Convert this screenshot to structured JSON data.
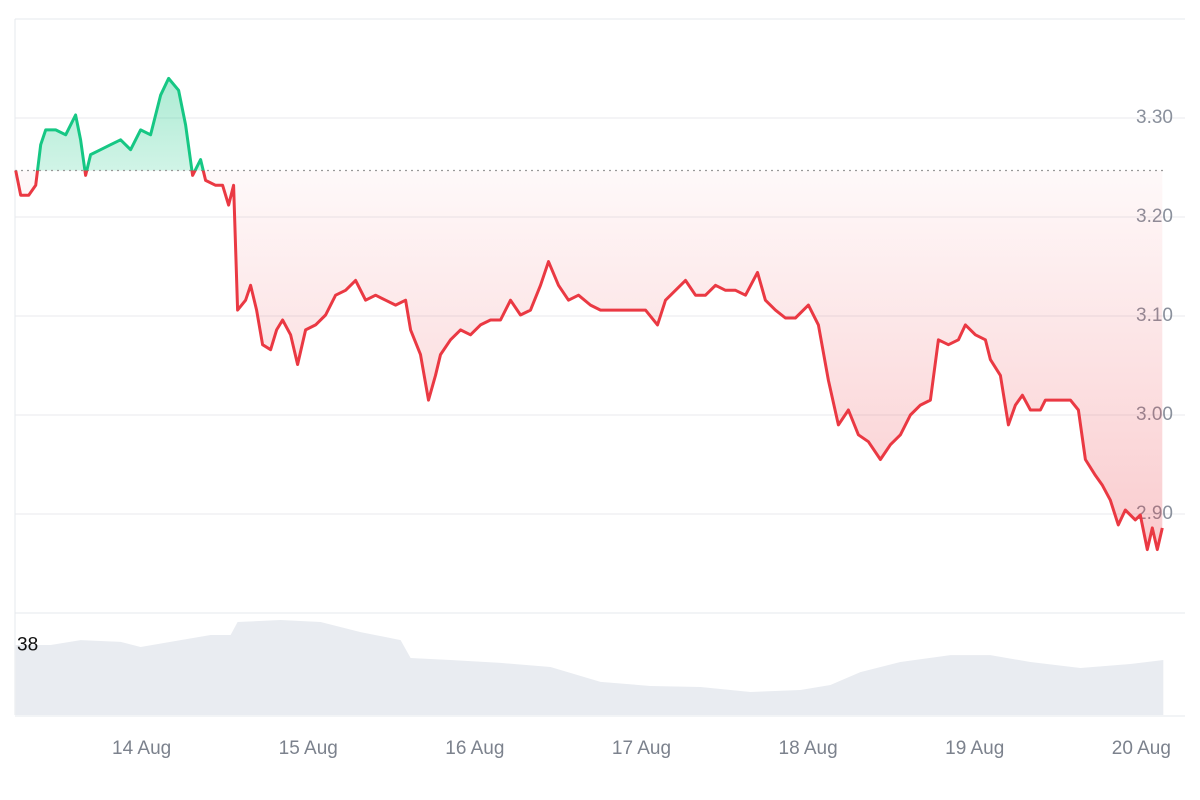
{
  "chart_data": {
    "type": "line",
    "x": [
      13.244,
      13.274,
      13.322,
      13.364,
      13.394,
      13.424,
      13.484,
      13.544,
      13.604,
      13.634,
      13.664,
      13.694,
      13.754,
      13.814,
      13.874,
      13.934,
      13.994,
      14.054,
      14.114,
      14.162,
      14.222,
      14.264,
      14.306,
      14.354,
      14.384,
      14.444,
      14.486,
      14.522,
      14.552,
      14.576,
      14.624,
      14.654,
      14.69,
      14.726,
      14.774,
      14.81,
      14.846,
      14.894,
      14.936,
      14.984,
      15.044,
      15.104,
      15.164,
      15.224,
      15.284,
      15.344,
      15.404,
      15.464,
      15.524,
      15.584,
      15.614,
      15.674,
      15.722,
      15.764,
      15.794,
      15.854,
      15.914,
      15.974,
      16.034,
      16.094,
      16.154,
      16.214,
      16.274,
      16.334,
      16.394,
      16.442,
      16.502,
      16.562,
      16.622,
      16.694,
      16.754,
      16.844,
      16.934,
      17.024,
      17.096,
      17.144,
      17.204,
      17.264,
      17.324,
      17.384,
      17.444,
      17.504,
      17.564,
      17.624,
      17.696,
      17.744,
      17.804,
      17.864,
      17.924,
      18.002,
      18.062,
      18.122,
      18.182,
      18.242,
      18.302,
      18.362,
      18.434,
      18.494,
      18.554,
      18.614,
      18.674,
      18.734,
      18.782,
      18.842,
      18.902,
      18.944,
      19.004,
      19.064,
      19.094,
      19.154,
      19.202,
      19.244,
      19.286,
      19.334,
      19.394,
      19.424,
      19.502,
      19.574,
      19.622,
      19.664,
      19.724,
      19.766,
      19.814,
      19.862,
      19.904,
      19.964,
      19.994,
      20.036,
      20.066,
      20.096,
      20.126
    ],
    "values": [
      3.247,
      3.222,
      3.222,
      3.232,
      3.273,
      3.288,
      3.288,
      3.283,
      3.303,
      3.278,
      3.242,
      3.263,
      3.268,
      3.273,
      3.278,
      3.268,
      3.288,
      3.283,
      3.323,
      3.34,
      3.328,
      3.293,
      3.242,
      3.258,
      3.237,
      3.232,
      3.232,
      3.212,
      3.232,
      3.106,
      3.116,
      3.131,
      3.106,
      3.071,
      3.066,
      3.086,
      3.096,
      3.081,
      3.051,
      3.086,
      3.091,
      3.101,
      3.121,
      3.126,
      3.136,
      3.116,
      3.121,
      3.116,
      3.111,
      3.116,
      3.086,
      3.061,
      3.015,
      3.04,
      3.061,
      3.076,
      3.086,
      3.081,
      3.091,
      3.096,
      3.096,
      3.116,
      3.101,
      3.106,
      3.131,
      3.155,
      3.131,
      3.116,
      3.121,
      3.111,
      3.106,
      3.106,
      3.106,
      3.106,
      3.091,
      3.116,
      3.126,
      3.136,
      3.121,
      3.121,
      3.131,
      3.126,
      3.126,
      3.121,
      3.144,
      3.116,
      3.106,
      3.098,
      3.098,
      3.111,
      3.091,
      3.035,
      2.99,
      3.005,
      2.98,
      2.973,
      2.955,
      2.97,
      2.98,
      3.0,
      3.01,
      3.015,
      3.076,
      3.071,
      3.076,
      3.091,
      3.081,
      3.076,
      3.056,
      3.04,
      2.99,
      3.01,
      3.02,
      3.005,
      3.005,
      3.015,
      3.015,
      3.015,
      3.005,
      2.955,
      2.939,
      2.929,
      2.914,
      2.889,
      2.904,
      2.894,
      2.899,
      2.864,
      2.886,
      2.864,
      2.886
    ],
    "baseline": 3.247,
    "up_color": "#16c784",
    "down_color": "#ea3943",
    "xlim": [
      13.24,
      20.13
    ],
    "xticks": [
      {
        "value": 14,
        "label": "14 Aug"
      },
      {
        "value": 15,
        "label": "15 Aug"
      },
      {
        "value": 16,
        "label": "16 Aug"
      },
      {
        "value": 17,
        "label": "17 Aug"
      },
      {
        "value": 18,
        "label": "18 Aug"
      },
      {
        "value": 19,
        "label": "19 Aug"
      },
      {
        "value": 20,
        "label": "20 Aug"
      }
    ],
    "ylim": [
      2.8,
      3.4
    ],
    "yticks": [
      {
        "value": 2.9,
        "label": "2.90"
      },
      {
        "value": 3.0,
        "label": "3.00"
      },
      {
        "value": 3.1,
        "label": "3.10"
      },
      {
        "value": 3.2,
        "label": "3.20"
      },
      {
        "value": 3.3,
        "label": "3.30"
      }
    ],
    "grid": true,
    "volume": {
      "x": [
        13.244,
        13.454,
        13.634,
        13.874,
        13.994,
        14.234,
        14.414,
        14.534,
        14.576,
        14.834,
        15.074,
        15.314,
        15.554,
        15.614,
        15.854,
        16.154,
        16.454,
        16.754,
        17.054,
        17.354,
        17.654,
        17.954,
        18.134,
        18.314,
        18.554,
        18.854,
        19.094,
        19.334,
        19.634,
        19.934,
        20.132
      ],
      "values": [
        38.3,
        38.3,
        41.0,
        40.0,
        37.2,
        41.0,
        43.8,
        43.8,
        50.9,
        52.0,
        50.9,
        45.4,
        41.0,
        31.2,
        30.1,
        28.5,
        26.3,
        18.1,
        15.9,
        15.3,
        12.6,
        13.7,
        16.4,
        23.5,
        29.0,
        32.8,
        32.8,
        29.0,
        25.7,
        27.9,
        30.1
      ],
      "ylim": [
        0,
        52
      ],
      "yticks": [
        38
      ],
      "color": "#e9ecf1"
    }
  }
}
